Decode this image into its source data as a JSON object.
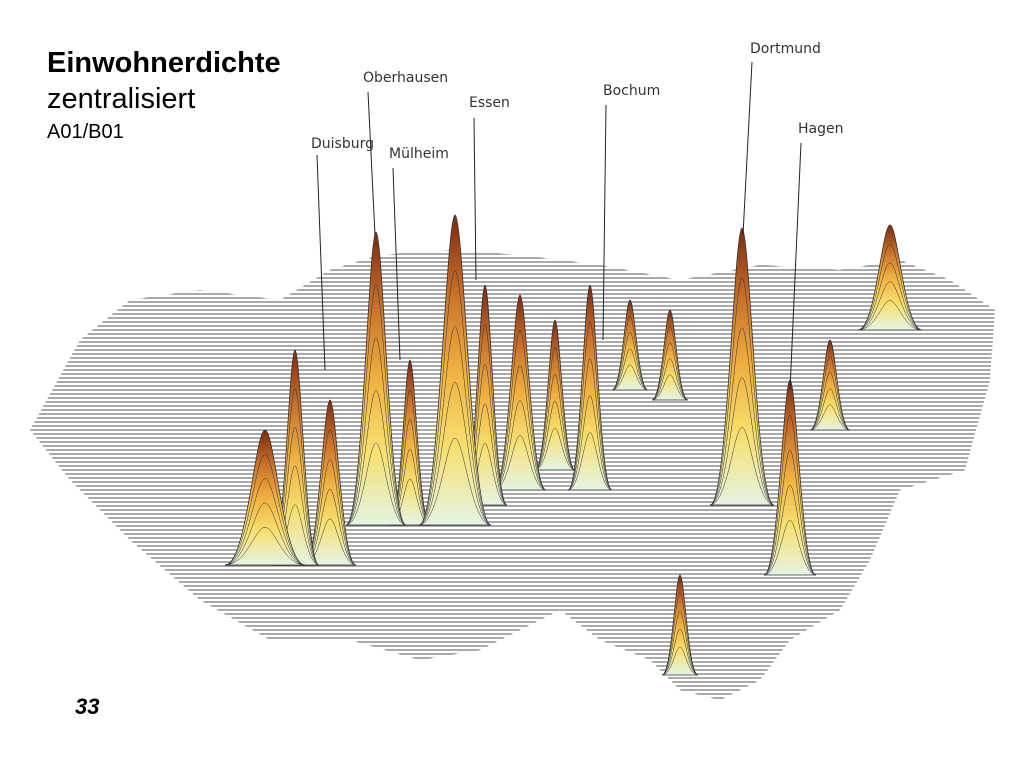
{
  "title": {
    "heading": "Einwohnerdichte",
    "subtitle": "zentralisiert",
    "code": "A01/B01"
  },
  "labels": [
    {
      "name": "Oberhausen"
    },
    {
      "name": "Duisburg"
    },
    {
      "name": "Mülheim"
    },
    {
      "name": "Essen"
    },
    {
      "name": "Bochum"
    },
    {
      "name": "Dortmund"
    },
    {
      "name": "Hagen"
    }
  ],
  "page_number": "33"
}
